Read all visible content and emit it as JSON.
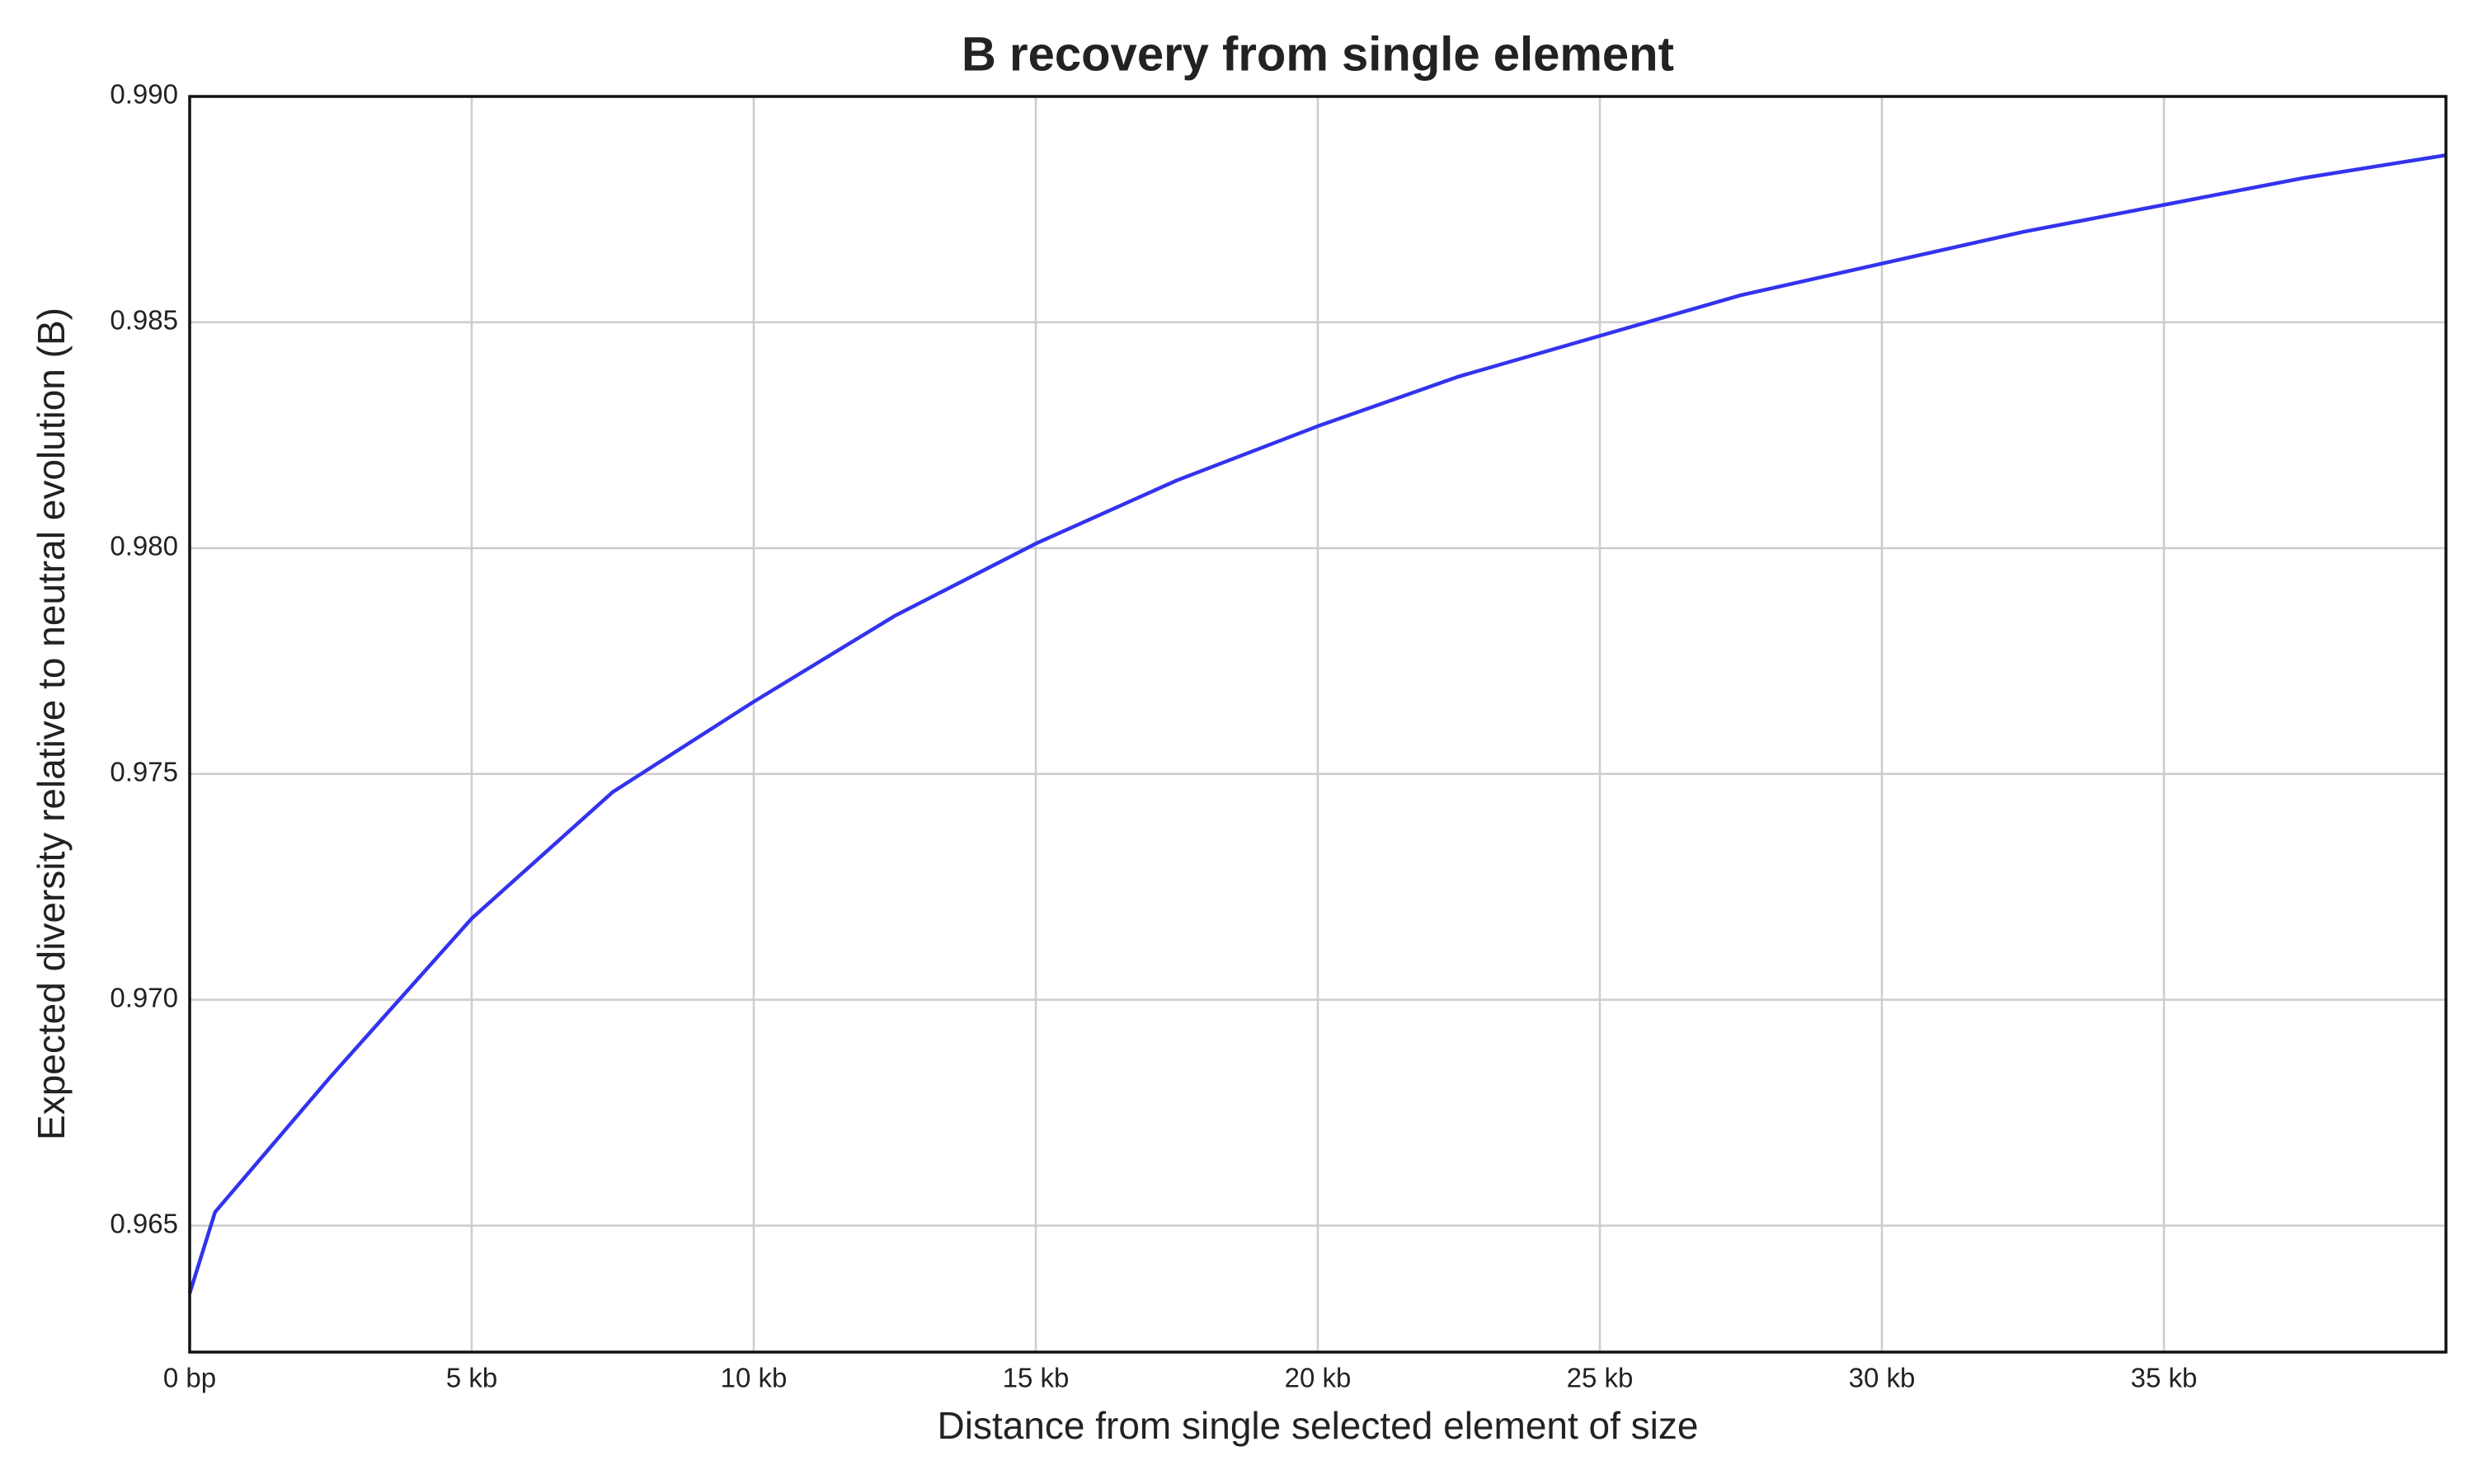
{
  "chart_data": {
    "type": "line",
    "title": "B recovery from single element",
    "x_label": "Distance from single selected element of size",
    "y_label": "Expected diversity relative to neutral evolution (B)",
    "x": [
      0,
      450,
      2500,
      5000,
      7500,
      10000,
      12500,
      15000,
      17500,
      20000,
      22500,
      25000,
      27500,
      30000,
      32500,
      35000,
      37500,
      40000
    ],
    "values": [
      0.9635,
      0.9653,
      0.9683,
      0.9718,
      0.9746,
      0.9766,
      0.9785,
      0.9801,
      0.9815,
      0.9827,
      0.9838,
      0.9847,
      0.9856,
      0.9863,
      0.987,
      0.9876,
      0.9882,
      0.9887
    ],
    "color": "#3333ee",
    "xlim": [
      0,
      40000
    ],
    "ylim": [
      0.9622,
      0.99
    ],
    "xticks": [
      {
        "value": 0,
        "label": "0 bp"
      },
      {
        "value": 5000,
        "label": "5 kb"
      },
      {
        "value": 10000,
        "label": "10 kb"
      },
      {
        "value": 15000,
        "label": "15 kb"
      },
      {
        "value": 20000,
        "label": "20 kb"
      },
      {
        "value": 25000,
        "label": "25 kb"
      },
      {
        "value": 30000,
        "label": "30 kb"
      },
      {
        "value": 35000,
        "label": "35 kb"
      }
    ],
    "yticks": [
      0.965,
      {
        "value": 0.97,
        "label": "0.970"
      },
      0.975,
      {
        "value": 0.98,
        "label": "0.980"
      },
      0.985,
      {
        "value": 0.99,
        "label": "0.990"
      }
    ],
    "grid": true
  }
}
